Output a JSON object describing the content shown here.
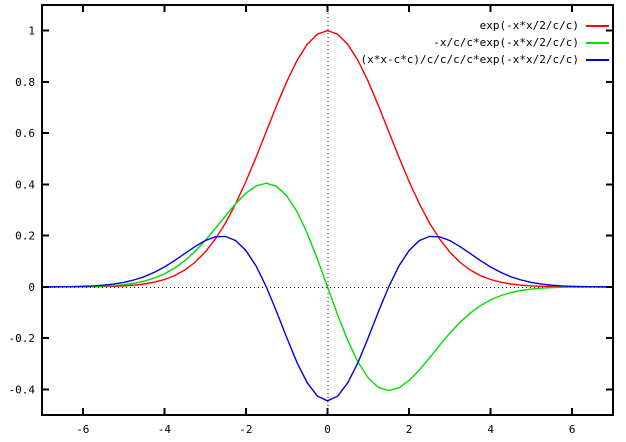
{
  "chart": {
    "background_color": "#ffffff",
    "border_color": "#000000",
    "text_color": "#000000"
  },
  "chart_data": {
    "type": "line",
    "title": "",
    "xlabel": "",
    "ylabel": "",
    "xlim": [
      -7,
      7
    ],
    "ylim": [
      -0.5,
      1.1
    ],
    "grid": false,
    "zero_axes_dotted": true,
    "legend_position": "top-right-inside",
    "x_ticks": [
      {
        "v": -6,
        "label": "-6"
      },
      {
        "v": -4,
        "label": "-4"
      },
      {
        "v": -2,
        "label": "-2"
      },
      {
        "v": 0,
        "label": "0"
      },
      {
        "v": 2,
        "label": "2"
      },
      {
        "v": 4,
        "label": "4"
      },
      {
        "v": 6,
        "label": "6"
      }
    ],
    "y_ticks": [
      {
        "v": -0.4,
        "label": "-0.4"
      },
      {
        "v": -0.2,
        "label": "-0.2"
      },
      {
        "v": 0,
        "label": "0"
      },
      {
        "v": 0.2,
        "label": "0.2"
      },
      {
        "v": 0.4,
        "label": "0.4"
      },
      {
        "v": 0.6,
        "label": "0.6"
      },
      {
        "v": 0.8,
        "label": "0.8"
      },
      {
        "v": 1,
        "label": "1"
      }
    ],
    "x": [
      -7,
      -6.75,
      -6.5,
      -6.25,
      -6,
      -5.75,
      -5.5,
      -5.25,
      -5,
      -4.75,
      -4.5,
      -4.25,
      -4,
      -3.75,
      -3.5,
      -3.25,
      -3,
      -2.75,
      -2.5,
      -2.25,
      -2,
      -1.75,
      -1.5,
      -1.25,
      -1,
      -0.75,
      -0.5,
      -0.25,
      0,
      0.25,
      0.5,
      0.75,
      1,
      1.25,
      1.5,
      1.75,
      2,
      2.25,
      2.5,
      2.75,
      3,
      3.25,
      3.5,
      3.75,
      4,
      4.25,
      4.5,
      4.75,
      5,
      5.25,
      5.5,
      5.75,
      6,
      6.25,
      6.5,
      6.75,
      7
    ],
    "series": [
      {
        "name": "exp(-x*x/2/c/c)",
        "color": "#ff0000",
        "values": [
          0.0,
          0.0,
          0.0001,
          0.0002,
          0.0003,
          0.0006,
          0.0012,
          0.0022,
          0.0039,
          0.0067,
          0.0111,
          0.0181,
          0.0286,
          0.0439,
          0.0657,
          0.0956,
          0.1353,
          0.1863,
          0.2494,
          0.3247,
          0.4111,
          0.5063,
          0.6065,
          0.7067,
          0.8007,
          0.8825,
          0.946,
          0.9862,
          1.0,
          0.9862,
          0.946,
          0.8825,
          0.8007,
          0.7067,
          0.6065,
          0.5063,
          0.4111,
          0.3247,
          0.2494,
          0.1863,
          0.1353,
          0.0956,
          0.0657,
          0.0439,
          0.0286,
          0.0181,
          0.0111,
          0.0067,
          0.0039,
          0.0022,
          0.0012,
          0.0006,
          0.0003,
          0.0002,
          0.0001,
          0.0,
          0.0
        ]
      },
      {
        "name": "-x/c/c*exp(-x*x/2/c/c)",
        "color": "#00dd00",
        "values": [
          0.0001,
          0.0001,
          0.0002,
          0.0005,
          0.0009,
          0.0016,
          0.0029,
          0.0051,
          0.0086,
          0.014,
          0.0222,
          0.0342,
          0.0508,
          0.0732,
          0.1022,
          0.1381,
          0.1805,
          0.2277,
          0.2771,
          0.3247,
          0.3654,
          0.3938,
          0.4044,
          0.3926,
          0.3559,
          0.2942,
          0.2102,
          0.1096,
          0.0,
          -0.1096,
          -0.2102,
          -0.2942,
          -0.3559,
          -0.3926,
          -0.4044,
          -0.3938,
          -0.3654,
          -0.3247,
          -0.2771,
          -0.2277,
          -0.1805,
          -0.1381,
          -0.1022,
          -0.0732,
          -0.0508,
          -0.0342,
          -0.0222,
          -0.014,
          -0.0086,
          -0.0051,
          -0.0029,
          -0.0016,
          -0.0009,
          -0.0005,
          -0.0002,
          -0.0001,
          -0.0001
        ]
      },
      {
        "name": "(x*x-c*c)/c/c/c/c*exp(-x*x/2/c/c)",
        "color": "#0000dd",
        "values": [
          0.0002,
          0.0003,
          0.0007,
          0.0012,
          0.0022,
          0.0039,
          0.0067,
          0.0109,
          0.0174,
          0.0267,
          0.0395,
          0.0565,
          0.0776,
          0.1025,
          0.1298,
          0.1569,
          0.1805,
          0.1955,
          0.197,
          0.1804,
          0.1421,
          0.0813,
          0.0,
          -0.096,
          -0.1977,
          -0.2942,
          -0.3737,
          -0.4261,
          -0.4444,
          -0.4261,
          -0.3737,
          -0.2942,
          -0.1977,
          -0.096,
          0.0,
          0.0813,
          0.1421,
          0.1804,
          0.197,
          0.1955,
          0.1805,
          0.1569,
          0.1298,
          0.1025,
          0.0776,
          0.0565,
          0.0395,
          0.0267,
          0.0174,
          0.0109,
          0.0067,
          0.0039,
          0.0022,
          0.0012,
          0.0007,
          0.0003,
          0.0002
        ]
      }
    ]
  }
}
